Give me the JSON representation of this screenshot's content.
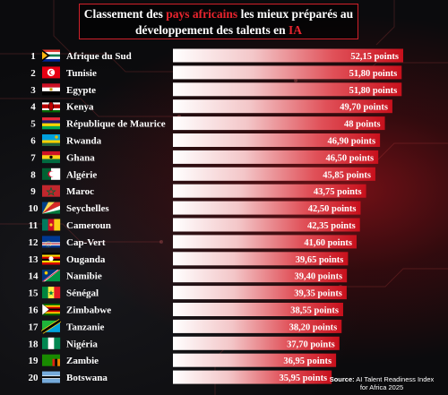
{
  "title": {
    "part1": "Classement des ",
    "part2": "pays africains",
    "part3": " les mieux préparés au",
    "part4": "développement des talents en ",
    "part5": "IA"
  },
  "source": {
    "label": "Source:",
    "text": " AI Talent Readiness Index for Africa 2025"
  },
  "colors": {
    "accent": "#e8242e",
    "bar_light": "#ffffff",
    "bar_dark": "#c8101c"
  },
  "chart_data": {
    "type": "bar",
    "orientation": "horizontal",
    "title": "Classement des pays africains les mieux préparés au développement des talents en IA",
    "xlim": [
      0,
      52.15
    ],
    "ranks": [
      "1",
      "2",
      "3",
      "4",
      "5",
      "6",
      "7",
      "8",
      "9",
      "10",
      "11",
      "12",
      "13",
      "14",
      "15",
      "16",
      "17",
      "18",
      "19",
      "20"
    ],
    "categories": [
      "Afrique du Sud",
      "Tunisie",
      "Egypte",
      "Kenya",
      "République de Maurice",
      "Rwanda",
      "Ghana",
      "Algérie",
      "Maroc",
      "Seychelles",
      "Cameroun",
      "Cap-Vert",
      "Ouganda",
      "Namibie",
      "Sénégal",
      "Zimbabwe",
      "Tanzanie",
      "Nigéria",
      "Zambie",
      "Botswana"
    ],
    "values": [
      52.15,
      51.8,
      51.8,
      49.7,
      48,
      46.9,
      46.5,
      45.85,
      43.75,
      42.5,
      42.35,
      41.6,
      39.65,
      39.4,
      39.35,
      38.55,
      38.2,
      37.7,
      36.95,
      35.95
    ],
    "value_labels": [
      "52,15 points",
      "51,80 points",
      "51,80 points",
      "49,70 points",
      "48 points",
      "46,90 points",
      "46,50 points",
      "45,85 points",
      "43,75 points",
      "42,50 points",
      "42,35 points",
      "41,60 points",
      "39,65 points",
      "39,40 points",
      "39,35 points",
      "38,55 points",
      "38,20 points",
      "37,70 points",
      "36,95 points",
      "35,95 points"
    ],
    "flags": [
      "south-africa-flag-icon",
      "tunisia-flag-icon",
      "egypt-flag-icon",
      "kenya-flag-icon",
      "mauritius-flag-icon",
      "rwanda-flag-icon",
      "ghana-flag-icon",
      "algeria-flag-icon",
      "morocco-flag-icon",
      "seychelles-flag-icon",
      "cameroon-flag-icon",
      "cape-verde-flag-icon",
      "uganda-flag-icon",
      "namibia-flag-icon",
      "senegal-flag-icon",
      "zimbabwe-flag-icon",
      "tanzania-flag-icon",
      "nigeria-flag-icon",
      "zambia-flag-icon",
      "botswana-flag-icon"
    ]
  }
}
